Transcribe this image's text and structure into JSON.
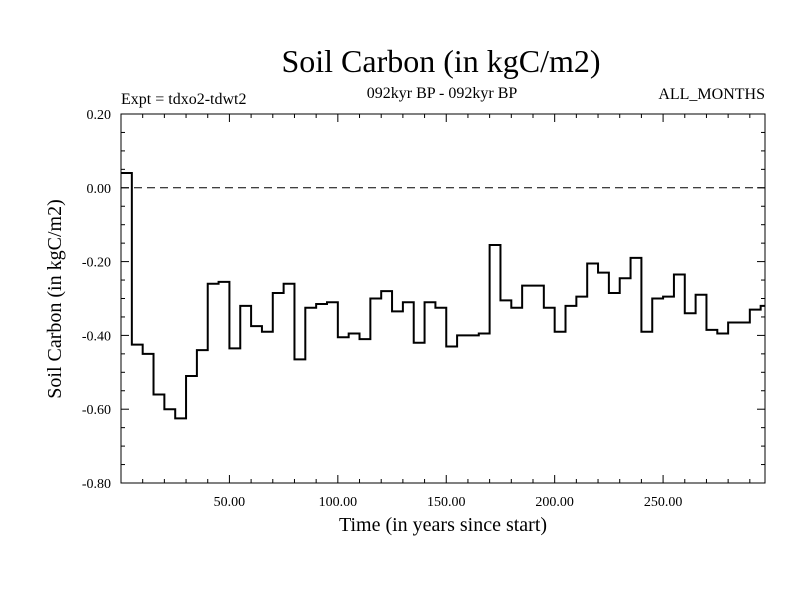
{
  "chart_data": {
    "type": "line",
    "style": "step",
    "title": "Soil Carbon (in kgC/m2)",
    "subtitle_left": "Expt = tdxo2-tdwt2",
    "subtitle_center": "092kyr BP - 092kyr BP",
    "subtitle_right": "ALL_MONTHS",
    "xlabel": "Time (in years since start)",
    "ylabel": "Soil Carbon (in kgC/m2)",
    "xlim": [
      0,
      297
    ],
    "ylim": [
      -0.8,
      0.2
    ],
    "x_ticks": [
      50,
      100,
      150,
      200,
      250
    ],
    "x_tick_labels": [
      "50.00",
      "100.00",
      "150.00",
      "200.00",
      "250.00"
    ],
    "y_ticks": [
      0.2,
      0,
      -0.2,
      -0.4,
      -0.6,
      -0.8
    ],
    "y_tick_labels": [
      "0.20",
      "0.00",
      "-0.20",
      "-0.40",
      "-0.60",
      "-0.80"
    ],
    "reference_line": {
      "y": 0,
      "style": "dashed"
    },
    "grid": false,
    "series": [
      {
        "color": "#000000",
        "x": [
          0,
          5,
          10,
          15,
          20,
          25,
          30,
          35,
          40,
          45,
          50,
          55,
          60,
          65,
          70,
          75,
          80,
          85,
          90,
          95,
          100,
          105,
          110,
          115,
          120,
          125,
          130,
          135,
          140,
          145,
          150,
          155,
          160,
          165,
          170,
          175,
          180,
          185,
          190,
          195,
          200,
          205,
          210,
          215,
          220,
          225,
          230,
          235,
          240,
          245,
          250,
          255,
          260,
          265,
          270,
          275,
          280,
          285,
          290,
          295
        ],
        "values": [
          0.04,
          -0.425,
          -0.45,
          -0.56,
          -0.6,
          -0.625,
          -0.51,
          -0.44,
          -0.26,
          -0.255,
          -0.435,
          -0.32,
          -0.375,
          -0.39,
          -0.285,
          -0.26,
          -0.465,
          -0.325,
          -0.315,
          -0.31,
          -0.405,
          -0.395,
          -0.41,
          -0.3,
          -0.28,
          -0.335,
          -0.31,
          -0.42,
          -0.31,
          -0.325,
          -0.43,
          -0.4,
          -0.4,
          -0.395,
          -0.155,
          -0.305,
          -0.325,
          -0.265,
          -0.265,
          -0.325,
          -0.39,
          -0.32,
          -0.295,
          -0.205,
          -0.23,
          -0.285,
          -0.245,
          -0.19,
          -0.39,
          -0.3,
          -0.295,
          -0.235,
          -0.34,
          -0.29,
          -0.385,
          -0.395,
          -0.365,
          -0.365,
          -0.33,
          -0.32
        ]
      }
    ]
  }
}
